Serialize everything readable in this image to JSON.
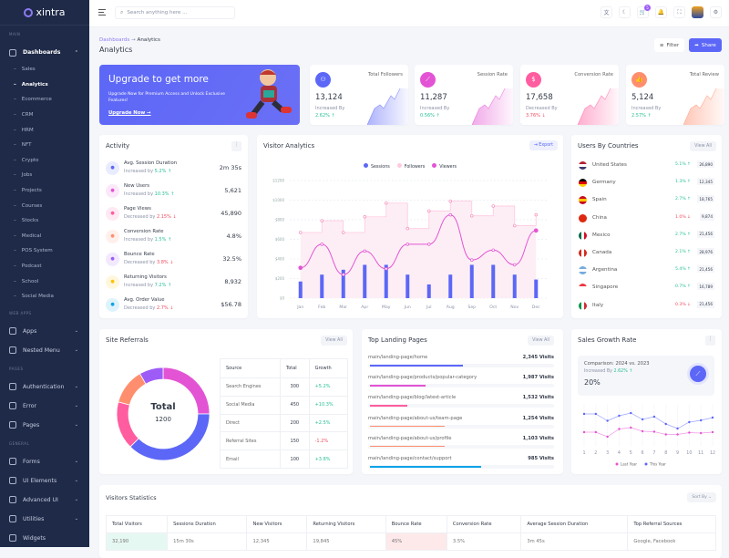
{
  "brand": "xintra",
  "sidebar": {
    "sections": [
      {
        "label": "MAIN",
        "items": [
          {
            "label": "Dashboards",
            "icon": "home-icon",
            "open": true,
            "sub": [
              "Sales",
              "Analytics",
              "Ecommerce",
              "CRM",
              "HRM",
              "NFT",
              "Crypto",
              "Jobs",
              "Projects",
              "Courses",
              "Stocks",
              "Medical",
              "POS System",
              "Podcast",
              "School",
              "Social Media"
            ],
            "active_sub": "Analytics"
          }
        ]
      },
      {
        "label": "WEB APPS",
        "items": [
          {
            "label": "Apps",
            "icon": "apps-icon"
          },
          {
            "label": "Nested Menu",
            "icon": "layers-icon"
          }
        ]
      },
      {
        "label": "PAGES",
        "items": [
          {
            "label": "Authentication",
            "icon": "lock-icon"
          },
          {
            "label": "Error",
            "icon": "warning-icon"
          },
          {
            "label": "Pages",
            "icon": "pages-icon"
          }
        ]
      },
      {
        "label": "GENERAL",
        "items": [
          {
            "label": "Forms",
            "icon": "clipboard-icon"
          },
          {
            "label": "UI Elements",
            "icon": "box-icon"
          },
          {
            "label": "Advanced UI",
            "icon": "file-icon"
          },
          {
            "label": "Utilities",
            "icon": "inbox-icon"
          },
          {
            "label": "Widgets",
            "icon": "gift-icon"
          }
        ]
      }
    ]
  },
  "header": {
    "search_placeholder": "Search anything here ...",
    "cart_badge": "5",
    "icons": [
      "translate-icon",
      "moon-icon",
      "cart-icon",
      "bell-icon",
      "fullscreen-icon",
      "avatar",
      "gear-icon"
    ]
  },
  "page": {
    "breadcrumb": [
      "Dashboards",
      "Analytics"
    ],
    "title": "Analytics",
    "filter": "Filter",
    "share": "Share"
  },
  "banner": {
    "title": "Upgrade to get more",
    "text": "Upgrade Now for Premium Access and Unlock Exclusive Features!",
    "link": "Upgrade Now →"
  },
  "stats": [
    {
      "label": "Total Followers",
      "value": "13,124",
      "dir": "Increased By",
      "change": "2.62% ↑",
      "up": true,
      "color": "#5c67f7",
      "icon": "users-icon"
    },
    {
      "label": "Session Rate",
      "value": "11,287",
      "dir": "Increased By",
      "change": "0.56% ↑",
      "up": true,
      "color": "#e354d4",
      "icon": "trend-icon"
    },
    {
      "label": "Conversion Rate",
      "value": "17,658",
      "dir": "Decreased By",
      "change": "3.76% ↓",
      "up": false,
      "color": "#ff5d9f",
      "icon": "dollar-icon"
    },
    {
      "label": "Total Review",
      "value": "5,124",
      "dir": "Increased By",
      "change": "2.57% ↑",
      "up": true,
      "color": "#ff8e6f",
      "icon": "thumbs-up-icon"
    }
  ],
  "activity": {
    "title": "Activity",
    "items": [
      {
        "name": "Avg. Session Duration",
        "dir": "Increased by",
        "change": "5.2% ↑",
        "up": true,
        "value": "2m 35s",
        "color": "#5c67f7"
      },
      {
        "name": "New Users",
        "dir": "Increased by",
        "change": "10.3% ↑",
        "up": true,
        "value": "5,621",
        "color": "#e354d4"
      },
      {
        "name": "Page Views",
        "dir": "Decreased by",
        "change": "2.15% ↓",
        "up": false,
        "value": "45,890",
        "color": "#ff5d9f"
      },
      {
        "name": "Conversion Rate",
        "dir": "Increased by",
        "change": "1.5% ↑",
        "up": true,
        "value": "4.8%",
        "color": "#ff8e6f"
      },
      {
        "name": "Bounce Rate",
        "dir": "Decreased by",
        "change": "3.8% ↓",
        "up": false,
        "value": "32.5%",
        "color": "#9e5cf7"
      },
      {
        "name": "Returning Visitors",
        "dir": "Increased by",
        "change": "7.2% ↑",
        "up": true,
        "value": "8,932",
        "color": "#ffc102"
      },
      {
        "name": "Avg. Order Value",
        "dir": "Decreased by",
        "change": "2.7% ↓",
        "up": false,
        "value": "$56.78",
        "color": "#0ca3e7"
      }
    ]
  },
  "visitor": {
    "title": "Visitor Analytics",
    "export": "Export"
  },
  "chart_data": [
    {
      "type": "bar+line",
      "title": "Visitor Analytics",
      "categories": [
        "Jan",
        "Feb",
        "Mar",
        "Apr",
        "May",
        "Jun",
        "Jul",
        "Aug",
        "Sep",
        "Oct",
        "Nov",
        "Dec"
      ],
      "yticks": [
        "$0",
        "$200",
        "$400",
        "$600",
        "$800",
        "$1000",
        "$1200"
      ],
      "ylim": [
        0,
        1200
      ],
      "legend": "top",
      "grid": true,
      "series": [
        {
          "name": "Sessions",
          "kind": "bar",
          "color": "#5c67f7",
          "values": [
            170,
            240,
            290,
            340,
            340,
            240,
            140,
            240,
            340,
            340,
            240,
            190
          ]
        },
        {
          "name": "Followers",
          "kind": "step-area",
          "color": "#ffc9e0",
          "values": [
            670,
            790,
            670,
            830,
            970,
            710,
            890,
            990,
            840,
            940,
            740,
            850
          ]
        },
        {
          "name": "Viewers",
          "kind": "spline",
          "color": "#e354d4",
          "values": [
            310,
            550,
            240,
            480,
            300,
            550,
            550,
            850,
            390,
            490,
            340,
            690
          ]
        }
      ]
    },
    {
      "type": "pie",
      "title": "Site Referrals",
      "center_label": "Total",
      "center_value": "1200",
      "categories": [
        "Search Engines",
        "Social Media",
        "Direct",
        "Referral Sites",
        "Email"
      ],
      "values": [
        300,
        450,
        200,
        150,
        100
      ],
      "colors": [
        "#e354d4",
        "#5c67f7",
        "#ff5d9f",
        "#ff8e6f",
        "#9e5cf7"
      ]
    },
    {
      "type": "line",
      "title": "Sales Growth Rate",
      "categories": [
        "1",
        "2",
        "3",
        "4",
        "5",
        "6",
        "7",
        "8",
        "9",
        "10",
        "11",
        "12"
      ],
      "legend": "bottom",
      "grid": true,
      "series": [
        {
          "name": "Last Year",
          "color": "#e354d4",
          "values": [
            30,
            30,
            20,
            37,
            40,
            32,
            31,
            25,
            25,
            29,
            28,
            30
          ]
        },
        {
          "name": "This Year",
          "color": "#5c67f7",
          "values": [
            70,
            70,
            55,
            66,
            72,
            58,
            64,
            48,
            38,
            52,
            56,
            62
          ]
        }
      ]
    }
  ],
  "countries": {
    "title": "Users By Countries",
    "view_all": "View All",
    "items": [
      {
        "name": "United States",
        "change": "5.1% ↑",
        "up": true,
        "value": "26,890",
        "flag": [
          "#b22234",
          "#fff",
          "#3c3b6e"
        ]
      },
      {
        "name": "Germany",
        "change": "1.3% ↑",
        "up": true,
        "value": "12,345",
        "flag": [
          "#000",
          "#dd0000",
          "#ffce00"
        ]
      },
      {
        "name": "Spain",
        "change": "2.7% ↑",
        "up": true,
        "value": "18,765",
        "flag": [
          "#c60b1e",
          "#ffc400",
          "#c60b1e"
        ]
      },
      {
        "name": "China",
        "change": "1.0% ↓",
        "up": false,
        "value": "9,874",
        "flag": [
          "#de2910",
          "#de2910",
          "#de2910"
        ]
      },
      {
        "name": "Mexico",
        "change": "2.7% ↑",
        "up": true,
        "value": "21,456",
        "flag": [
          "#006847",
          "#fff",
          "#ce1126"
        ]
      },
      {
        "name": "Canada",
        "change": "2.1% ↑",
        "up": true,
        "value": "28,976",
        "flag": [
          "#d52b1e",
          "#fff",
          "#d52b1e"
        ]
      },
      {
        "name": "Argentina",
        "change": "5.4% ↑",
        "up": true,
        "value": "21,456",
        "flag": [
          "#74acdf",
          "#fff",
          "#74acdf"
        ]
      },
      {
        "name": "Singapore",
        "change": "0.7% ↑",
        "up": true,
        "value": "16,789",
        "flag": [
          "#ef3340",
          "#fff",
          "#fff"
        ]
      },
      {
        "name": "Italy",
        "change": "0.3% ↓",
        "up": false,
        "value": "21,456",
        "flag": [
          "#009246",
          "#fff",
          "#ce2b37"
        ]
      }
    ]
  },
  "referrals": {
    "title": "Site Referrals",
    "view_all": "View All",
    "headers": [
      "Source",
      "Total",
      "Growth"
    ],
    "rows": [
      [
        "Search Engines",
        "300",
        "+5.2%"
      ],
      [
        "Social Media",
        "450",
        "+10.3%"
      ],
      [
        "Direct",
        "200",
        "+2.5%"
      ],
      [
        "Referral Sites",
        "150",
        "-1.2%"
      ],
      [
        "Email",
        "100",
        "+3.8%"
      ]
    ]
  },
  "landing": {
    "title": "Top Landing Pages",
    "view_all": "View All",
    "items": [
      {
        "path": "main/landing-page/home",
        "visits": "2,345 Visits",
        "progress": 0.5,
        "color": "#5c67f7"
      },
      {
        "path": "main/landing-page/products/popular-category",
        "visits": "1,987 Visits",
        "progress": 0.3,
        "color": "#e354d4"
      },
      {
        "path": "main/landing-page/blog/latest-article",
        "visits": "1,532 Visits",
        "progress": 0.2,
        "color": "#ff5d9f"
      },
      {
        "path": "main/landing-page/about-us/team-page",
        "visits": "1,254 Visits",
        "progress": 0.4,
        "color": "#ff8e6f"
      },
      {
        "path": "main/landing-page/about-us/profile",
        "visits": "1,103 Visits",
        "progress": 0.4,
        "color": "#ff8e6f"
      },
      {
        "path": "main/landing-page/contact/support",
        "visits": "985 Visits",
        "progress": 0.6,
        "color": "#0ca3e7"
      }
    ]
  },
  "sales": {
    "title": "Sales Growth Rate",
    "comparison": "Comparison: 2024 vs. 2023",
    "dir": "Increased By",
    "change": "2.62% ↑",
    "value": "20%"
  },
  "visitors_stats": {
    "title": "Visitors Statistics",
    "sort": "Sort By ⌄",
    "headers": [
      "Total Visitors",
      "Sessions Duration",
      "New Visitors",
      "Returning Visitors",
      "Bounce Rate",
      "Conversion Rate",
      "Average Session Duration",
      "Top Referral Sources"
    ],
    "row": [
      "32,190",
      "15m 30s",
      "12,345",
      "19,845",
      "45%",
      "3.5%",
      "3m 45s",
      "Google, Facebook"
    ]
  }
}
